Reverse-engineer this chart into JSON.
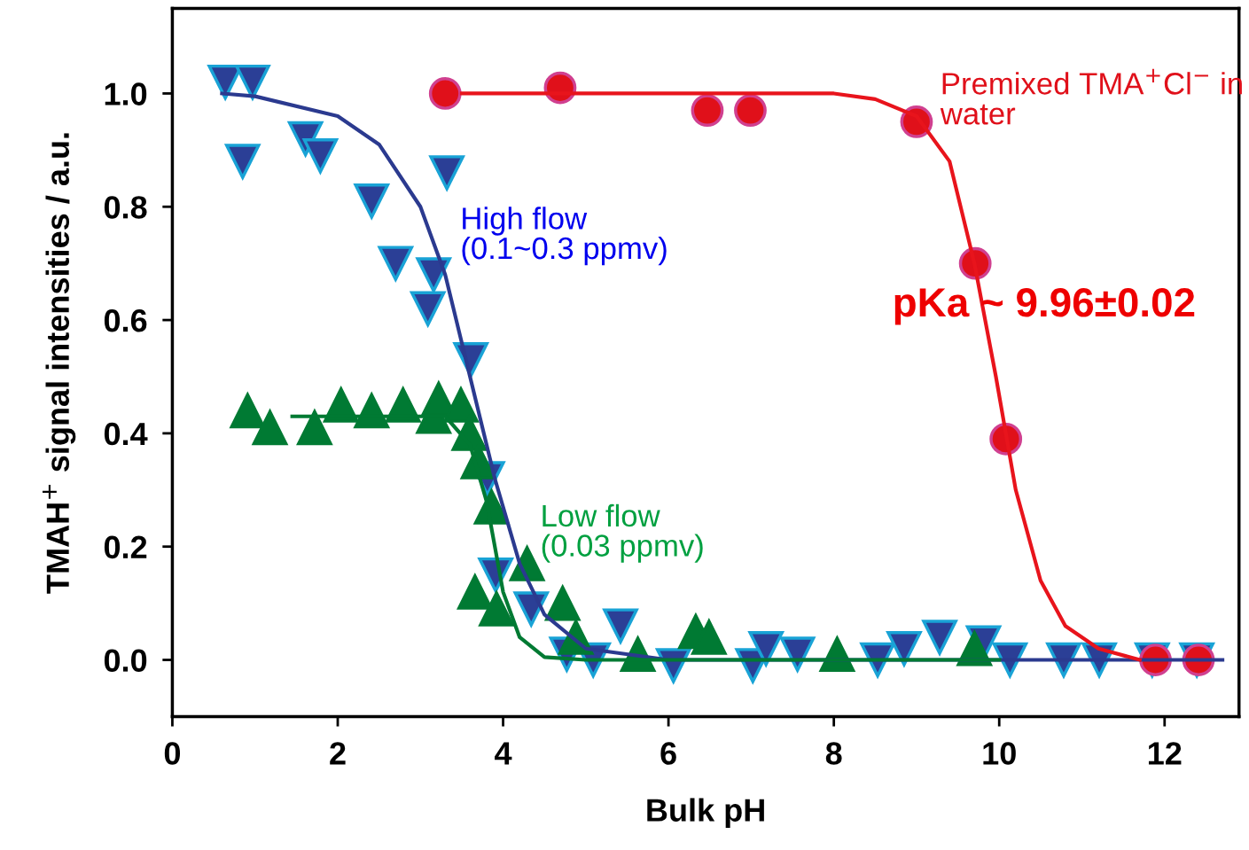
{
  "chart_data": {
    "type": "scatter",
    "xlabel": "Bulk pH",
    "ylabel": "TMAH$^{+}$ signal intensities / a.u.",
    "xlim": [
      0,
      12.9
    ],
    "ylim": [
      -0.1,
      1.15
    ],
    "xticks": [
      0,
      2,
      4,
      6,
      8,
      10,
      12
    ],
    "yticks": [
      {
        "value": 0,
        "label": "0.0"
      },
      {
        "value": 0.2,
        "label": "0.2"
      },
      {
        "value": 0.4,
        "label": "0.4"
      },
      {
        "value": 0.6,
        "label": "0.6"
      },
      {
        "value": 0.8,
        "label": "0.8"
      },
      {
        "value": 1.0,
        "label": "1.0"
      }
    ],
    "grid": false,
    "legend": false,
    "annotations": [
      "pKa ~ 9.96±0.02"
    ],
    "series": [
      {
        "name": "High flow\n(0.1~0.3 ppmv)",
        "marker": "triangle_down",
        "color": "#2b3f96",
        "x": [
          0.64,
          0.97,
          0.85,
          1.61,
          1.79,
          2.41,
          2.7,
          3.16,
          3.09,
          3.32,
          3.61,
          3.81,
          3.91,
          4.34,
          4.77,
          5.09,
          5.42,
          6.06,
          7.02,
          7.18,
          7.56,
          8.53,
          8.85,
          9.28,
          9.81,
          10.13,
          10.78,
          11.21,
          11.85,
          12.39
        ],
        "values": [
          1.02,
          1.02,
          0.88,
          0.92,
          0.89,
          0.81,
          0.7,
          0.68,
          0.62,
          0.86,
          0.53,
          0.32,
          0.15,
          0.09,
          0.01,
          0.0,
          0.06,
          -0.01,
          -0.01,
          0.02,
          0.01,
          0.0,
          0.02,
          0.04,
          0.03,
          0.0,
          0.0,
          0.0,
          0.0,
          0.0
        ]
      },
      {
        "name": "Low flow\n(0.03 ppmv)",
        "marker": "triangle",
        "color": "#007a33",
        "x": [
          0.91,
          1.18,
          1.72,
          2.04,
          2.41,
          2.79,
          3.16,
          3.22,
          3.49,
          3.59,
          3.7,
          3.86,
          4.29,
          3.66,
          3.92,
          4.72,
          4.88,
          5.63,
          6.33,
          6.49,
          8.04,
          9.7
        ],
        "values": [
          0.44,
          0.41,
          0.41,
          0.45,
          0.44,
          0.45,
          0.43,
          0.46,
          0.45,
          0.4,
          0.35,
          0.27,
          0.17,
          0.12,
          0.09,
          0.1,
          0.04,
          0.01,
          0.05,
          0.04,
          0.01,
          0.02
        ]
      },
      {
        "name": "Premixed TMA$^{+}$Cl$^{−}$ in\nwater",
        "marker": "circle",
        "color": "#e0101a",
        "x": [
          3.3,
          4.69,
          6.47,
          6.99,
          9.0,
          9.71,
          10.08,
          11.89,
          12.41
        ],
        "values": [
          1.0,
          1.01,
          0.97,
          0.97,
          0.95,
          0.7,
          0.39,
          0.0,
          0.0
        ]
      },
      {
        "type": "line",
        "color": "#2b3a8f",
        "x": [
          0.6,
          1.0,
          2.0,
          2.5,
          3.0,
          3.3,
          3.6,
          3.9,
          4.2,
          4.5,
          5.0,
          6.0,
          12.7
        ],
        "values": [
          1.0,
          0.995,
          0.96,
          0.91,
          0.8,
          0.68,
          0.5,
          0.32,
          0.17,
          0.08,
          0.02,
          0.0,
          0.0
        ]
      },
      {
        "type": "line",
        "color": "#007a33",
        "x": [
          1.45,
          3.3,
          3.6,
          3.8,
          3.9,
          4.0,
          4.2,
          4.5,
          5.0,
          10.0
        ],
        "values": [
          0.43,
          0.43,
          0.38,
          0.28,
          0.2,
          0.12,
          0.04,
          0.005,
          0.0,
          0.0
        ]
      },
      {
        "type": "line",
        "color": "#e8141c",
        "x": [
          3.5,
          8.0,
          8.5,
          9.0,
          9.4,
          9.7,
          9.96,
          10.2,
          10.5,
          10.8,
          11.2,
          11.7
        ],
        "values": [
          1.0,
          1.0,
          0.99,
          0.96,
          0.88,
          0.7,
          0.5,
          0.3,
          0.14,
          0.06,
          0.02,
          0.0
        ]
      }
    ]
  }
}
